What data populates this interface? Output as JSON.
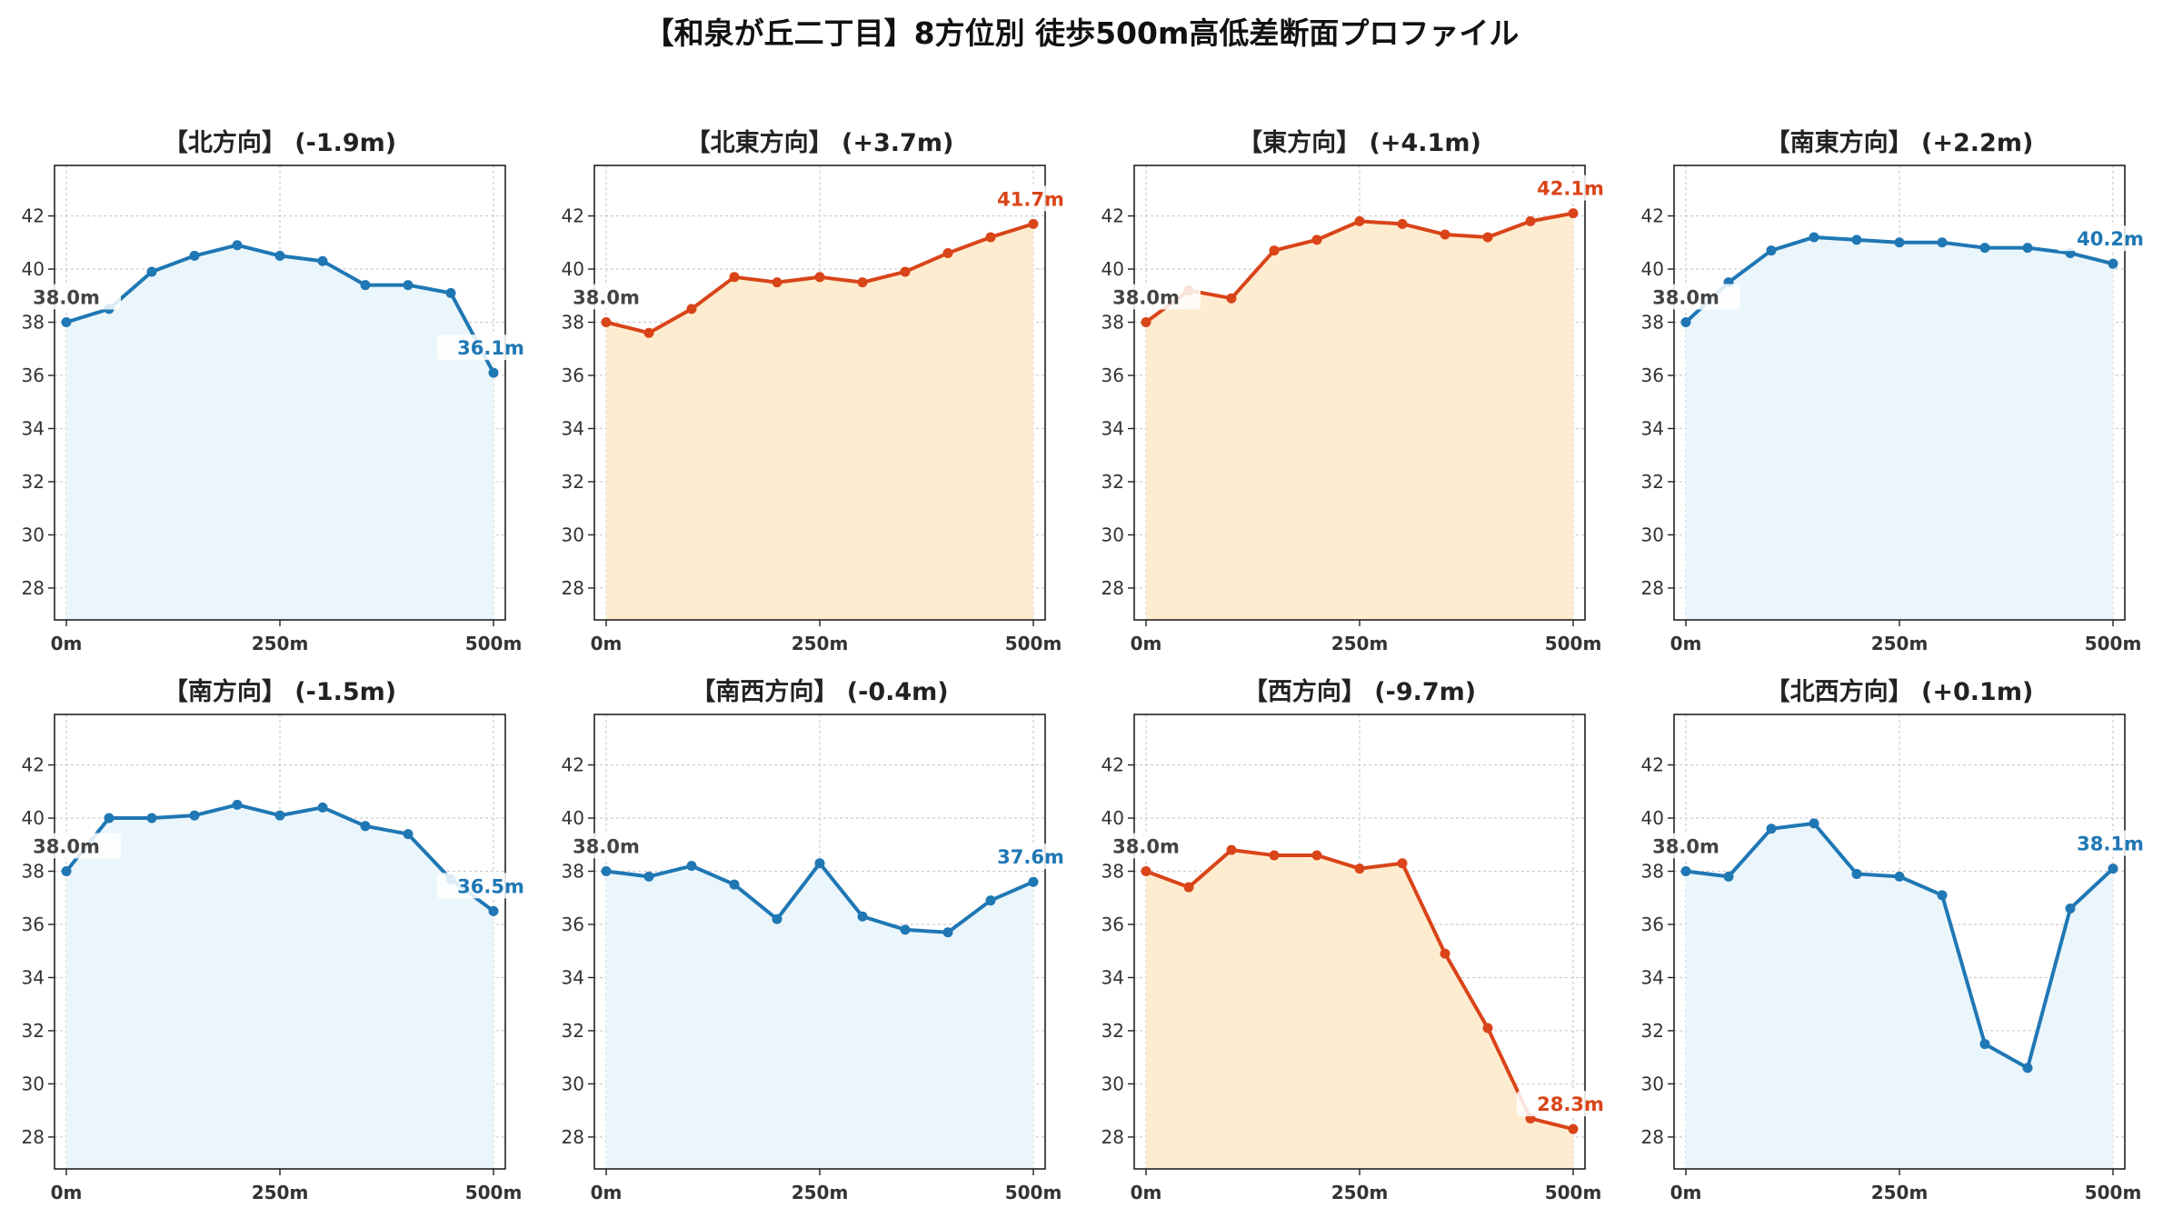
{
  "title": "【和泉が丘二丁目】8方位別 徒歩500m高低差断面プロファイル",
  "chart_data": [
    {
      "type": "area",
      "title": "【北方向】 (-1.9m)",
      "x": [
        0,
        50,
        100,
        150,
        200,
        250,
        300,
        350,
        400,
        450,
        500
      ],
      "values": [
        38.0,
        38.5,
        39.9,
        40.5,
        40.9,
        40.5,
        40.3,
        39.4,
        39.4,
        39.1,
        36.1
      ],
      "start_label": "38.0m",
      "end_label": "36.1m",
      "color": "#1f77b4",
      "fill": "#eaf6fb",
      "ylim": [
        26.8,
        43.9
      ],
      "yticks": [
        28,
        30,
        32,
        34,
        36,
        38,
        40,
        42
      ],
      "xticks": [
        "0m",
        "250m",
        "500m"
      ],
      "grid": true
    },
    {
      "type": "area",
      "title": "【北東方向】 (+3.7m)",
      "x": [
        0,
        50,
        100,
        150,
        200,
        250,
        300,
        350,
        400,
        450,
        500
      ],
      "values": [
        38.0,
        37.6,
        38.5,
        39.7,
        39.5,
        39.7,
        39.5,
        39.9,
        40.6,
        41.2,
        41.7
      ],
      "start_label": "38.0m",
      "end_label": "41.7m",
      "color": "#d94418",
      "fill": "#fdecd0",
      "ylim": [
        26.8,
        43.9
      ],
      "yticks": [
        28,
        30,
        32,
        34,
        36,
        38,
        40,
        42
      ],
      "xticks": [
        "0m",
        "250m",
        "500m"
      ],
      "grid": true
    },
    {
      "type": "area",
      "title": "【東方向】 (+4.1m)",
      "x": [
        0,
        50,
        100,
        150,
        200,
        250,
        300,
        350,
        400,
        450,
        500
      ],
      "values": [
        38.0,
        39.2,
        38.9,
        40.7,
        41.1,
        41.8,
        41.7,
        41.3,
        41.2,
        41.8,
        42.1
      ],
      "start_label": "38.0m",
      "end_label": "42.1m",
      "color": "#d94418",
      "fill": "#fdecd0",
      "ylim": [
        26.8,
        43.9
      ],
      "yticks": [
        28,
        30,
        32,
        34,
        36,
        38,
        40,
        42
      ],
      "xticks": [
        "0m",
        "250m",
        "500m"
      ],
      "grid": true
    },
    {
      "type": "area",
      "title": "【南東方向】 (+2.2m)",
      "x": [
        0,
        50,
        100,
        150,
        200,
        250,
        300,
        350,
        400,
        450,
        500
      ],
      "values": [
        38.0,
        39.5,
        40.7,
        41.2,
        41.1,
        41.0,
        41.0,
        40.8,
        40.8,
        40.6,
        40.2
      ],
      "start_label": "38.0m",
      "end_label": "40.2m",
      "color": "#1f77b4",
      "fill": "#eaf6fb",
      "ylim": [
        26.8,
        43.9
      ],
      "yticks": [
        28,
        30,
        32,
        34,
        36,
        38,
        40,
        42
      ],
      "xticks": [
        "0m",
        "250m",
        "500m"
      ],
      "grid": true
    },
    {
      "type": "area",
      "title": "【南方向】 (-1.5m)",
      "x": [
        0,
        50,
        100,
        150,
        200,
        250,
        300,
        350,
        400,
        450,
        500
      ],
      "values": [
        38.0,
        40.0,
        40.0,
        40.1,
        40.5,
        40.1,
        40.4,
        39.7,
        39.4,
        37.7,
        36.5
      ],
      "start_label": "38.0m",
      "end_label": "36.5m",
      "color": "#1f77b4",
      "fill": "#eaf6fb",
      "ylim": [
        26.8,
        43.9
      ],
      "yticks": [
        28,
        30,
        32,
        34,
        36,
        38,
        40,
        42
      ],
      "xticks": [
        "0m",
        "250m",
        "500m"
      ],
      "grid": true
    },
    {
      "type": "area",
      "title": "【南西方向】 (-0.4m)",
      "x": [
        0,
        50,
        100,
        150,
        200,
        250,
        300,
        350,
        400,
        450,
        500
      ],
      "values": [
        38.0,
        37.8,
        38.2,
        37.5,
        36.2,
        38.3,
        36.3,
        35.8,
        35.7,
        36.9,
        37.6
      ],
      "start_label": "38.0m",
      "end_label": "37.6m",
      "color": "#1f77b4",
      "fill": "#eaf6fb",
      "ylim": [
        26.8,
        43.9
      ],
      "yticks": [
        28,
        30,
        32,
        34,
        36,
        38,
        40,
        42
      ],
      "xticks": [
        "0m",
        "250m",
        "500m"
      ],
      "grid": true
    },
    {
      "type": "area",
      "title": "【西方向】 (-9.7m)",
      "x": [
        0,
        50,
        100,
        150,
        200,
        250,
        300,
        350,
        400,
        450,
        500
      ],
      "values": [
        38.0,
        37.4,
        38.8,
        38.6,
        38.6,
        38.1,
        38.3,
        34.9,
        32.1,
        28.7,
        28.3
      ],
      "start_label": "38.0m",
      "end_label": "28.3m",
      "color": "#d94418",
      "fill": "#fdecd0",
      "ylim": [
        26.8,
        43.9
      ],
      "yticks": [
        28,
        30,
        32,
        34,
        36,
        38,
        40,
        42
      ],
      "xticks": [
        "0m",
        "250m",
        "500m"
      ],
      "grid": true
    },
    {
      "type": "area",
      "title": "【北西方向】 (+0.1m)",
      "x": [
        0,
        50,
        100,
        150,
        200,
        250,
        300,
        350,
        400,
        450,
        500
      ],
      "values": [
        38.0,
        37.8,
        39.6,
        39.8,
        37.9,
        37.8,
        37.1,
        31.5,
        30.6,
        36.6,
        38.1
      ],
      "start_label": "38.0m",
      "end_label": "38.1m",
      "color": "#1f77b4",
      "fill": "#eaf6fb",
      "ylim": [
        26.8,
        43.9
      ],
      "yticks": [
        28,
        30,
        32,
        34,
        36,
        38,
        40,
        42
      ],
      "xticks": [
        "0m",
        "250m",
        "500m"
      ],
      "grid": true
    }
  ]
}
